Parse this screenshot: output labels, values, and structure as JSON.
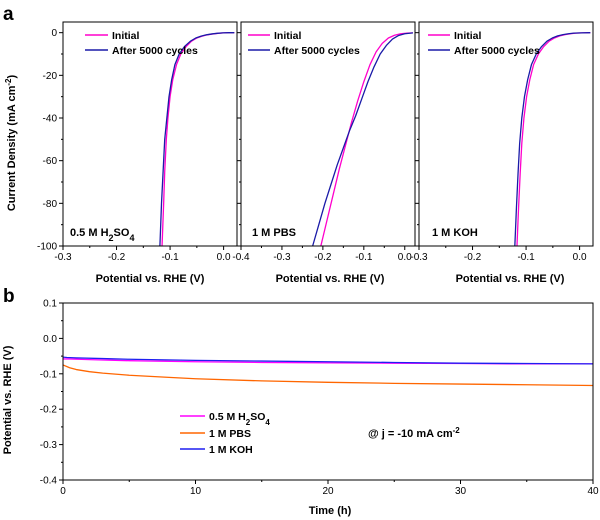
{
  "colors": {
    "initial": "#ff00cc",
    "after": "#1a1aa8",
    "h2so4": "#ff00ff",
    "pbs": "#ff6600",
    "koh": "#1f1ff0"
  },
  "chart_data": [
    {
      "id": "a1",
      "panel": "a",
      "type": "line",
      "xlabel": "Potential vs. RHE (V)",
      "ylabel": "Current Density (mA cm-2)",
      "ylabel_parts": [
        "Current Density  (mA cm",
        "-2",
        ")"
      ],
      "xlim": [
        -0.3,
        0.025
      ],
      "ylim": [
        -100,
        5
      ],
      "xticks": [
        -0.3,
        -0.2,
        -0.1,
        0.0
      ],
      "xtick_labels": [
        "-0.3",
        "-0.2",
        "-0.1",
        "0.0"
      ],
      "yticks": [
        0,
        -20,
        -40,
        -60,
        -80,
        -100
      ],
      "ytick_labels": [
        "0",
        "-20",
        "-40",
        "-60",
        "-80",
        "-100"
      ],
      "annotation_parts": [
        "0.5 M H",
        "2",
        "SO",
        "4"
      ],
      "legend": [
        "Initial",
        "After 5000 cycles"
      ],
      "series": [
        {
          "name": "Initial",
          "x": [
            -0.115,
            -0.112,
            -0.11,
            -0.107,
            -0.104,
            -0.1,
            -0.095,
            -0.088,
            -0.08,
            -0.07,
            -0.06,
            -0.05,
            -0.04,
            -0.03,
            -0.02,
            -0.01,
            0.0,
            0.01,
            0.02
          ],
          "y": [
            -100,
            -80,
            -65,
            -50,
            -40,
            -30,
            -22,
            -15,
            -10,
            -6.5,
            -4,
            -2.5,
            -1.6,
            -1.0,
            -0.6,
            -0.3,
            -0.1,
            0.0,
            0.0
          ]
        },
        {
          "name": "After 5000 cycles",
          "x": [
            -0.119,
            -0.116,
            -0.113,
            -0.11,
            -0.106,
            -0.102,
            -0.097,
            -0.091,
            -0.083,
            -0.073,
            -0.062,
            -0.052,
            -0.042,
            -0.032,
            -0.022,
            -0.012,
            -0.002,
            0.01,
            0.02
          ],
          "y": [
            -100,
            -80,
            -65,
            -50,
            -40,
            -30,
            -22,
            -15,
            -10,
            -6.5,
            -4,
            -2.5,
            -1.6,
            -1.0,
            -0.6,
            -0.3,
            -0.1,
            0.0,
            0.0
          ]
        }
      ]
    },
    {
      "id": "a2",
      "panel": "a",
      "type": "line",
      "xlabel": "Potential vs. RHE (V)",
      "xlim": [
        -0.4,
        0.025
      ],
      "ylim": [
        -100,
        5
      ],
      "xticks": [
        -0.4,
        -0.3,
        -0.2,
        -0.1,
        0.0
      ],
      "xtick_labels": [
        "-0.4",
        "-0.3",
        "-0.2",
        "-0.1",
        "0.0"
      ],
      "annotation_parts": [
        "1 M PBS"
      ],
      "legend": [
        "Initial",
        "After 5000 cycles"
      ],
      "series": [
        {
          "name": "Initial",
          "x": [
            -0.205,
            -0.19,
            -0.175,
            -0.16,
            -0.145,
            -0.13,
            -0.115,
            -0.1,
            -0.085,
            -0.07,
            -0.055,
            -0.04,
            -0.025,
            -0.01,
            0.005,
            0.02
          ],
          "y": [
            -100,
            -88,
            -76,
            -64,
            -53,
            -42,
            -32,
            -23,
            -15,
            -9,
            -5,
            -2.5,
            -1.2,
            -0.5,
            -0.2,
            -0.1
          ]
        },
        {
          "name": "After 5000 cycles",
          "x": [
            -0.225,
            -0.21,
            -0.195,
            -0.18,
            -0.165,
            -0.15,
            -0.135,
            -0.12,
            -0.105,
            -0.09,
            -0.075,
            -0.06,
            -0.045,
            -0.03,
            -0.015,
            0.0,
            0.02
          ],
          "y": [
            -100,
            -90,
            -80,
            -71,
            -62,
            -54,
            -46,
            -39,
            -31,
            -23,
            -16,
            -10,
            -6,
            -3,
            -1.3,
            -0.5,
            -0.1
          ]
        }
      ]
    },
    {
      "id": "a3",
      "panel": "a",
      "type": "line",
      "xlabel": "Potential vs. RHE (V)",
      "xlim": [
        -0.3,
        0.025
      ],
      "ylim": [
        -100,
        5
      ],
      "xticks": [
        -0.3,
        -0.2,
        -0.1,
        0.0
      ],
      "xtick_labels": [
        "-0.3",
        "-0.2",
        "-0.1",
        "0.0"
      ],
      "annotation_parts": [
        "1 M KOH"
      ],
      "legend": [
        "Initial",
        "After 5000 cycles"
      ],
      "series": [
        {
          "name": "Initial",
          "x": [
            -0.117,
            -0.114,
            -0.111,
            -0.108,
            -0.104,
            -0.099,
            -0.093,
            -0.086,
            -0.077,
            -0.067,
            -0.057,
            -0.047,
            -0.037,
            -0.027,
            -0.017,
            -0.007,
            0.005,
            0.02
          ],
          "y": [
            -100,
            -82,
            -66,
            -52,
            -40,
            -30,
            -22,
            -15,
            -10,
            -6.5,
            -4,
            -2.5,
            -1.5,
            -0.9,
            -0.5,
            -0.2,
            -0.1,
            0.0
          ]
        },
        {
          "name": "After 5000 cycles",
          "x": [
            -0.121,
            -0.118,
            -0.115,
            -0.112,
            -0.108,
            -0.103,
            -0.097,
            -0.09,
            -0.081,
            -0.071,
            -0.061,
            -0.051,
            -0.041,
            -0.031,
            -0.021,
            -0.011,
            0.003,
            0.02
          ],
          "y": [
            -100,
            -82,
            -66,
            -52,
            -40,
            -30,
            -22,
            -15,
            -10,
            -6.5,
            -4,
            -2.5,
            -1.5,
            -0.9,
            -0.5,
            -0.2,
            -0.1,
            0.0
          ]
        }
      ]
    },
    {
      "id": "b",
      "panel": "b",
      "type": "line",
      "xlabel": "Time (h)",
      "ylabel": "Potential vs. RHE (V)",
      "xlim": [
        0,
        40
      ],
      "ylim": [
        -0.4,
        0.1
      ],
      "xticks": [
        0,
        10,
        20,
        30,
        40
      ],
      "xtick_labels": [
        "0",
        "10",
        "20",
        "30",
        "40"
      ],
      "yticks": [
        0.1,
        0.0,
        -0.1,
        -0.2,
        -0.3,
        -0.4
      ],
      "ytick_labels": [
        "0.1",
        "0.0",
        "-0.1",
        "-0.2",
        "-0.3",
        "-0.4"
      ],
      "annotation_parts": [
        "@ j = -10 mA cm",
        "-2"
      ],
      "legend_parts": [
        [
          "0.5 M H",
          "2",
          "SO",
          "4"
        ],
        [
          "1 M PBS"
        ],
        [
          "1 M KOH"
        ]
      ],
      "series": [
        {
          "name": "0.5 M H2SO4",
          "x": [
            0,
            0.5,
            2,
            5,
            10,
            15,
            20,
            25,
            30,
            35,
            40
          ],
          "y": [
            -0.058,
            -0.058,
            -0.06,
            -0.063,
            -0.066,
            -0.068,
            -0.069,
            -0.07,
            -0.071,
            -0.072,
            -0.072
          ]
        },
        {
          "name": "1 M PBS",
          "x": [
            0,
            0.5,
            1,
            2,
            3,
            5,
            8,
            10,
            15,
            20,
            25,
            30,
            35,
            40
          ],
          "y": [
            -0.075,
            -0.083,
            -0.088,
            -0.094,
            -0.098,
            -0.104,
            -0.11,
            -0.114,
            -0.12,
            -0.124,
            -0.127,
            -0.129,
            -0.131,
            -0.133
          ]
        },
        {
          "name": "1 M KOH",
          "x": [
            0,
            0.3,
            1,
            3,
            5,
            10,
            15,
            20,
            25,
            30,
            35,
            40
          ],
          "y": [
            -0.053,
            -0.054,
            -0.055,
            -0.057,
            -0.059,
            -0.062,
            -0.064,
            -0.066,
            -0.068,
            -0.07,
            -0.071,
            -0.072
          ]
        }
      ]
    }
  ],
  "panel_letters": [
    "a",
    "b"
  ]
}
